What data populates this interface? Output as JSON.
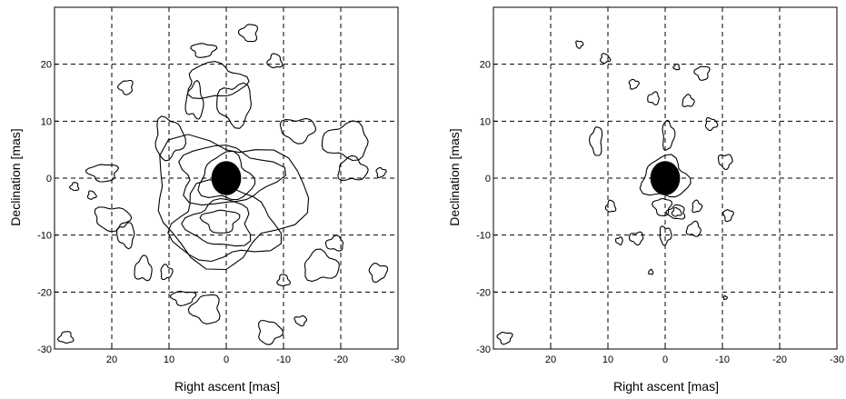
{
  "chart_data": [
    {
      "type": "contour",
      "panel": "left",
      "xlabel": "Right ascent [mas]",
      "ylabel": "Declination [mas]",
      "xlim": [
        30,
        -30
      ],
      "ylim": [
        -30,
        30
      ],
      "xticks": [
        20,
        10,
        0,
        -10,
        -20,
        -30
      ],
      "yticks": [
        20,
        10,
        0,
        -10,
        -20,
        -30
      ],
      "grid": true,
      "grid_style": "dashed",
      "core": {
        "x": 0,
        "y": 0,
        "rx": 2.6,
        "ry": 3.0
      },
      "contours": [
        {
          "x": 0,
          "y": 0,
          "rx": 4.5,
          "ry": 4.0
        },
        {
          "x": 0,
          "y": 0.5,
          "rx": 8.5,
          "ry": 5.0
        },
        {
          "x": 1,
          "y": -7.5,
          "rx": 3.0,
          "ry": 2.0
        },
        {
          "x": 1,
          "y": -8,
          "rx": 5.5,
          "ry": 4.0
        },
        {
          "x": 0.5,
          "y": -8,
          "rx": 9.0,
          "ry": 6.5
        },
        {
          "x": 0,
          "y": -3.5,
          "rx": 13.0,
          "ry": 10.5
        },
        {
          "x": -1.5,
          "y": 13,
          "rx": 3.0,
          "ry": 3.5
        },
        {
          "x": 5.5,
          "y": 13.5,
          "rx": 1.5,
          "ry": 3.0
        },
        {
          "x": 2,
          "y": 17,
          "rx": 5.0,
          "ry": 3.0
        },
        {
          "x": 4,
          "y": 22.5,
          "rx": 2.0,
          "ry": 1.2
        },
        {
          "x": -4,
          "y": 25.5,
          "rx": 1.5,
          "ry": 1.5
        },
        {
          "x": -8.5,
          "y": 20.5,
          "rx": 1.2,
          "ry": 1.2
        },
        {
          "x": 10,
          "y": 7,
          "rx": 2.5,
          "ry": 3.5
        },
        {
          "x": -12.5,
          "y": 8.5,
          "rx": 3.0,
          "ry": 2.0
        },
        {
          "x": -21,
          "y": 6.5,
          "rx": 4.0,
          "ry": 3.0
        },
        {
          "x": -22,
          "y": 1.5,
          "rx": 2.5,
          "ry": 2.0
        },
        {
          "x": -27,
          "y": 1,
          "rx": 0.8,
          "ry": 0.8
        },
        {
          "x": 21.5,
          "y": 1,
          "rx": 2.5,
          "ry": 1.5
        },
        {
          "x": 26.5,
          "y": -1.5,
          "rx": 0.7,
          "ry": 0.7
        },
        {
          "x": 23.5,
          "y": -3,
          "rx": 0.7,
          "ry": 0.7
        },
        {
          "x": 20,
          "y": -7,
          "rx": 3.0,
          "ry": 2.0
        },
        {
          "x": 17.5,
          "y": -10,
          "rx": 1.5,
          "ry": 2.0
        },
        {
          "x": 14.5,
          "y": -16,
          "rx": 1.5,
          "ry": 2.0
        },
        {
          "x": 10.5,
          "y": -16.5,
          "rx": 1.0,
          "ry": 1.2
        },
        {
          "x": 7.5,
          "y": -21,
          "rx": 2.0,
          "ry": 1.2
        },
        {
          "x": 3.5,
          "y": -23,
          "rx": 2.5,
          "ry": 2.5
        },
        {
          "x": -10,
          "y": -18,
          "rx": 1.0,
          "ry": 1.0
        },
        {
          "x": -7.5,
          "y": -27,
          "rx": 2.0,
          "ry": 2.0
        },
        {
          "x": -13,
          "y": -25,
          "rx": 1.0,
          "ry": 0.8
        },
        {
          "x": -19,
          "y": -11.5,
          "rx": 1.5,
          "ry": 1.2
        },
        {
          "x": -16.5,
          "y": -15.5,
          "rx": 3.0,
          "ry": 2.5
        },
        {
          "x": -26.5,
          "y": -16.5,
          "rx": 1.5,
          "ry": 1.5
        },
        {
          "x": 17.5,
          "y": 16,
          "rx": 1.2,
          "ry": 1.2
        },
        {
          "x": 28,
          "y": -28,
          "rx": 1.2,
          "ry": 1.0
        }
      ]
    },
    {
      "type": "contour",
      "panel": "right",
      "xlabel": "Right ascent [mas]",
      "ylabel": "Declination [mas]",
      "xlim": [
        30,
        -30
      ],
      "ylim": [
        -30,
        30
      ],
      "xticks": [
        20,
        10,
        0,
        -10,
        -20,
        -30
      ],
      "yticks": [
        20,
        10,
        0,
        -10,
        -20,
        -30
      ],
      "grid": true,
      "grid_style": "dashed",
      "core": {
        "x": 0,
        "y": 0,
        "rx": 2.6,
        "ry": 3.0
      },
      "contours": [
        {
          "x": 0,
          "y": 0,
          "rx": 4.0,
          "ry": 3.5
        },
        {
          "x": -0.5,
          "y": 7.5,
          "rx": 1.0,
          "ry": 2.5
        },
        {
          "x": 0.5,
          "y": -5,
          "rx": 1.5,
          "ry": 1.5
        },
        {
          "x": -2,
          "y": -6,
          "rx": 1.5,
          "ry": 1.2
        },
        {
          "x": -2,
          "y": -6,
          "rx": 0.8,
          "ry": 0.7
        },
        {
          "x": 0,
          "y": -10,
          "rx": 1.0,
          "ry": 1.5
        },
        {
          "x": 5,
          "y": -10.5,
          "rx": 1.2,
          "ry": 1.0
        },
        {
          "x": -5,
          "y": -9,
          "rx": 1.2,
          "ry": 1.2
        },
        {
          "x": -5.5,
          "y": -5,
          "rx": 0.8,
          "ry": 1.0
        },
        {
          "x": -11,
          "y": -6.5,
          "rx": 0.8,
          "ry": 1.0
        },
        {
          "x": 12,
          "y": 6.5,
          "rx": 1.0,
          "ry": 2.5
        },
        {
          "x": 9.5,
          "y": -5,
          "rx": 0.8,
          "ry": 1.0
        },
        {
          "x": -8,
          "y": 9.5,
          "rx": 1.0,
          "ry": 1.0
        },
        {
          "x": -10.5,
          "y": 3,
          "rx": 1.2,
          "ry": 1.2
        },
        {
          "x": 2,
          "y": 14,
          "rx": 1.0,
          "ry": 1.0
        },
        {
          "x": -4,
          "y": 13.5,
          "rx": 1.0,
          "ry": 1.0
        },
        {
          "x": 5.5,
          "y": 16.5,
          "rx": 0.8,
          "ry": 0.8
        },
        {
          "x": -6.5,
          "y": 18.5,
          "rx": 1.2,
          "ry": 1.2
        },
        {
          "x": -2,
          "y": 19.5,
          "rx": 0.5,
          "ry": 0.5
        },
        {
          "x": 10.5,
          "y": 21,
          "rx": 0.8,
          "ry": 0.8
        },
        {
          "x": 15,
          "y": 23.5,
          "rx": 0.6,
          "ry": 0.6
        },
        {
          "x": 8,
          "y": -11,
          "rx": 0.6,
          "ry": 0.6
        },
        {
          "x": 2.5,
          "y": -16.5,
          "rx": 0.4,
          "ry": 0.4
        },
        {
          "x": -10.5,
          "y": -21,
          "rx": 0.3,
          "ry": 0.3
        },
        {
          "x": 28,
          "y": -28,
          "rx": 1.2,
          "ry": 1.0
        }
      ]
    }
  ]
}
